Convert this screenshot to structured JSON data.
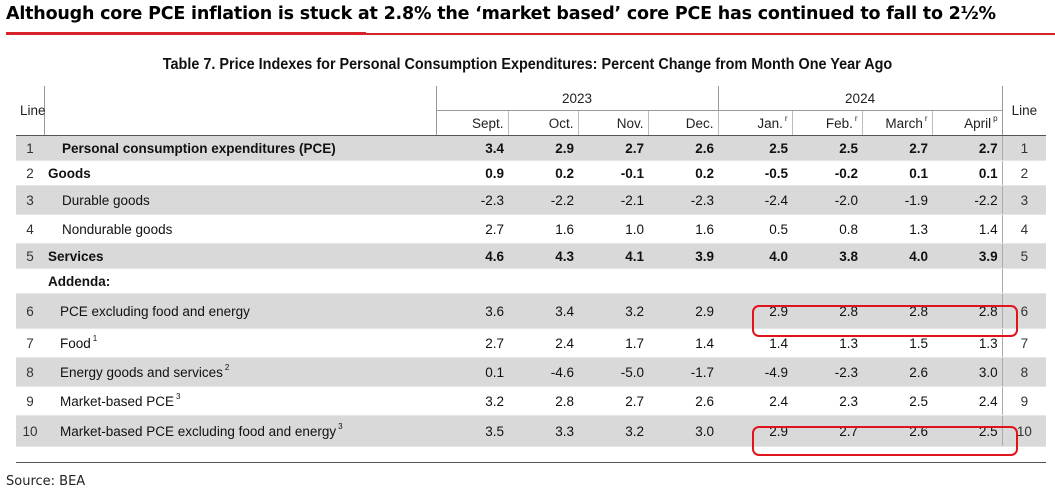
{
  "headline": "Although core PCE inflation is stuck at 2.8% the ‘market based’ core PCE has continued to fall to 2½%",
  "table_title": "Table 7. Price Indexes for Personal Consumption Expenditures: Percent Change from Month One Year Ago",
  "header": {
    "line_left": "Line",
    "line_right": "Line",
    "year_2023": "2023",
    "year_2024": "2024",
    "months": [
      {
        "label": "Sept.",
        "sup": ""
      },
      {
        "label": "Oct.",
        "sup": ""
      },
      {
        "label": "Nov.",
        "sup": ""
      },
      {
        "label": "Dec.",
        "sup": ""
      },
      {
        "label": "Jan.",
        "sup": "r"
      },
      {
        "label": "Feb.",
        "sup": "r"
      },
      {
        "label": "March",
        "sup": "r"
      },
      {
        "label": "April",
        "sup": "p"
      }
    ]
  },
  "rows": [
    {
      "line": "1",
      "label": "Personal consumption expenditures (PCE)",
      "sup": "",
      "values": [
        "3.4",
        "2.9",
        "2.7",
        "2.6",
        "2.5",
        "2.5",
        "2.7",
        "2.7"
      ]
    },
    {
      "line": "2",
      "label": "Goods",
      "sup": "",
      "values": [
        "0.9",
        "0.2",
        "-0.1",
        "0.2",
        "-0.5",
        "-0.2",
        "0.1",
        "0.1"
      ]
    },
    {
      "line": "3",
      "label": "Durable goods",
      "sup": "",
      "values": [
        "-2.3",
        "-2.2",
        "-2.1",
        "-2.3",
        "-2.4",
        "-2.0",
        "-1.9",
        "-2.2"
      ]
    },
    {
      "line": "4",
      "label": "Nondurable goods",
      "sup": "",
      "values": [
        "2.7",
        "1.6",
        "1.0",
        "1.6",
        "0.5",
        "0.8",
        "1.3",
        "1.4"
      ]
    },
    {
      "line": "5",
      "label": "Services",
      "sup": "",
      "values": [
        "4.6",
        "4.3",
        "4.1",
        "3.9",
        "4.0",
        "3.8",
        "4.0",
        "3.9"
      ]
    },
    {
      "line": "",
      "label": "Addenda:",
      "sup": "",
      "values": [
        "",
        "",
        "",
        "",
        "",
        "",
        "",
        ""
      ]
    },
    {
      "line": "6",
      "label": "PCE excluding food and energy",
      "sup": "",
      "values": [
        "3.6",
        "3.4",
        "3.2",
        "2.9",
        "2.9",
        "2.8",
        "2.8",
        "2.8"
      ]
    },
    {
      "line": "7",
      "label": "Food",
      "sup": "1",
      "values": [
        "2.7",
        "2.4",
        "1.7",
        "1.4",
        "1.4",
        "1.3",
        "1.5",
        "1.3"
      ]
    },
    {
      "line": "8",
      "label": "Energy goods and services",
      "sup": "2",
      "values": [
        "0.1",
        "-4.6",
        "-5.0",
        "-1.7",
        "-4.9",
        "-2.3",
        "2.6",
        "3.0"
      ]
    },
    {
      "line": "9",
      "label": "Market-based PCE",
      "sup": "3",
      "values": [
        "3.2",
        "2.8",
        "2.7",
        "2.6",
        "2.4",
        "2.3",
        "2.5",
        "2.4"
      ]
    },
    {
      "line": "10",
      "label": "Market-based PCE excluding food and energy",
      "sup": "3",
      "values": [
        "3.5",
        "3.3",
        "3.2",
        "3.0",
        "2.9",
        "2.7",
        "2.6",
        "2.5"
      ]
    }
  ],
  "source": "Source: BEA",
  "colors": {
    "accent_red": "#e0141e",
    "shade": "#d9d9d9"
  }
}
